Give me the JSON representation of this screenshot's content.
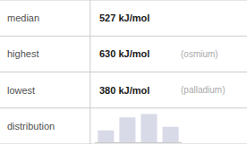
{
  "chart_data": {
    "type": "bar",
    "categories": [
      null,
      null,
      null,
      null
    ],
    "values": [
      0.42,
      0.88,
      1.0,
      0.55
    ],
    "color": "#d8dae8",
    "ylim": [
      0,
      1.15
    ],
    "yticks": [],
    "tick_labels": false,
    "grid": false,
    "annotations": [
      [
        "median",
        "527 kJ/mol"
      ],
      [
        "highest",
        "630 kJ/mol",
        "(osmium)"
      ],
      [
        "lowest",
        "380 kJ/mol",
        "(palladium)"
      ],
      [
        "distribution"
      ]
    ]
  }
}
